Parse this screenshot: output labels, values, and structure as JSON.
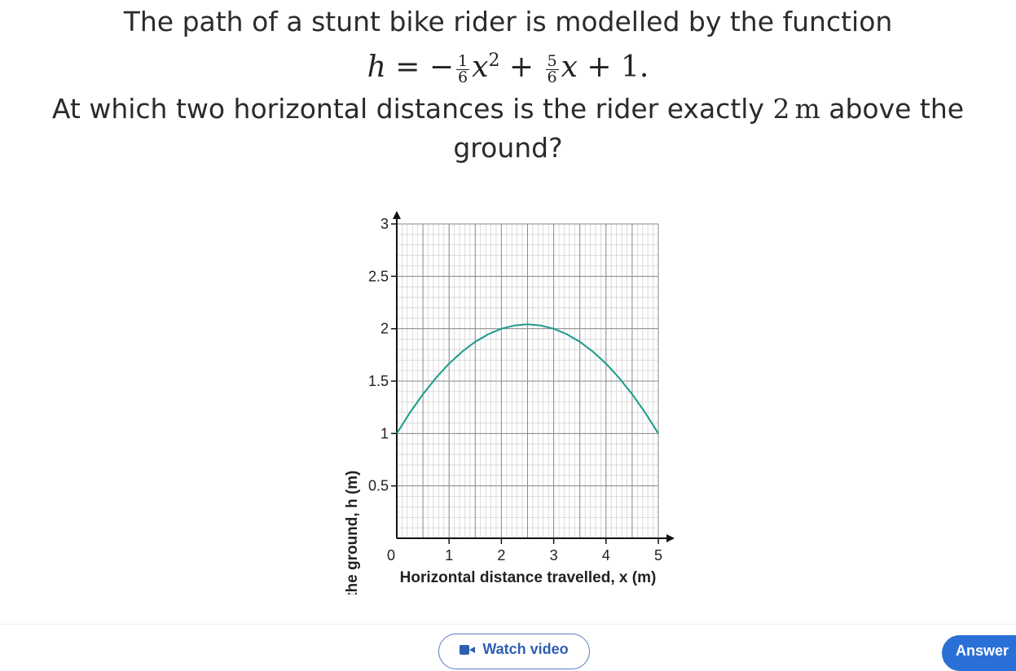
{
  "question": {
    "line1": "The path of a stunt bike rider is modelled by the function",
    "formula": {
      "lhs": "h",
      "equals": "=",
      "minus": "−",
      "frac1_num": "1",
      "frac1_den": "6",
      "x_sq": "x",
      "exp": "2",
      "plus1": "+",
      "frac2_num": "5",
      "frac2_den": "6",
      "x": "x",
      "plus2": "+",
      "const": "1."
    },
    "line3_prefix": "At which two horizontal distances is the rider exactly ",
    "line3_value": "2",
    "line3_unit": "m",
    "line3_suffix": " above the",
    "line4": "ground?"
  },
  "chart_data": {
    "type": "line",
    "xlabel": "Horizontal distance travelled, x (m)",
    "ylabel": "Height above the ground, h (m)",
    "xlim": [
      0,
      5
    ],
    "ylim": [
      0,
      3
    ],
    "x_ticks": [
      "0",
      "1",
      "2",
      "3",
      "4",
      "5"
    ],
    "y_ticks": [
      "0.5",
      "1",
      "1.5",
      "2",
      "2.5",
      "3"
    ],
    "grid": true,
    "series": [
      {
        "x": [
          0,
          0.25,
          0.5,
          0.75,
          1,
          1.25,
          1.5,
          1.75,
          2,
          2.25,
          2.5,
          2.75,
          3,
          3.25,
          3.5,
          3.75,
          4,
          4.25,
          4.5,
          4.75,
          5
        ],
        "y": [
          1,
          1.198,
          1.375,
          1.531,
          1.667,
          1.781,
          1.875,
          1.948,
          2,
          2.031,
          2.042,
          2.031,
          2,
          1.948,
          1.875,
          1.781,
          1.667,
          1.531,
          1.375,
          1.198,
          1
        ],
        "color": "#1a9a8a"
      }
    ]
  },
  "actions": {
    "watch_video": "Watch video",
    "answer": "Answer"
  }
}
